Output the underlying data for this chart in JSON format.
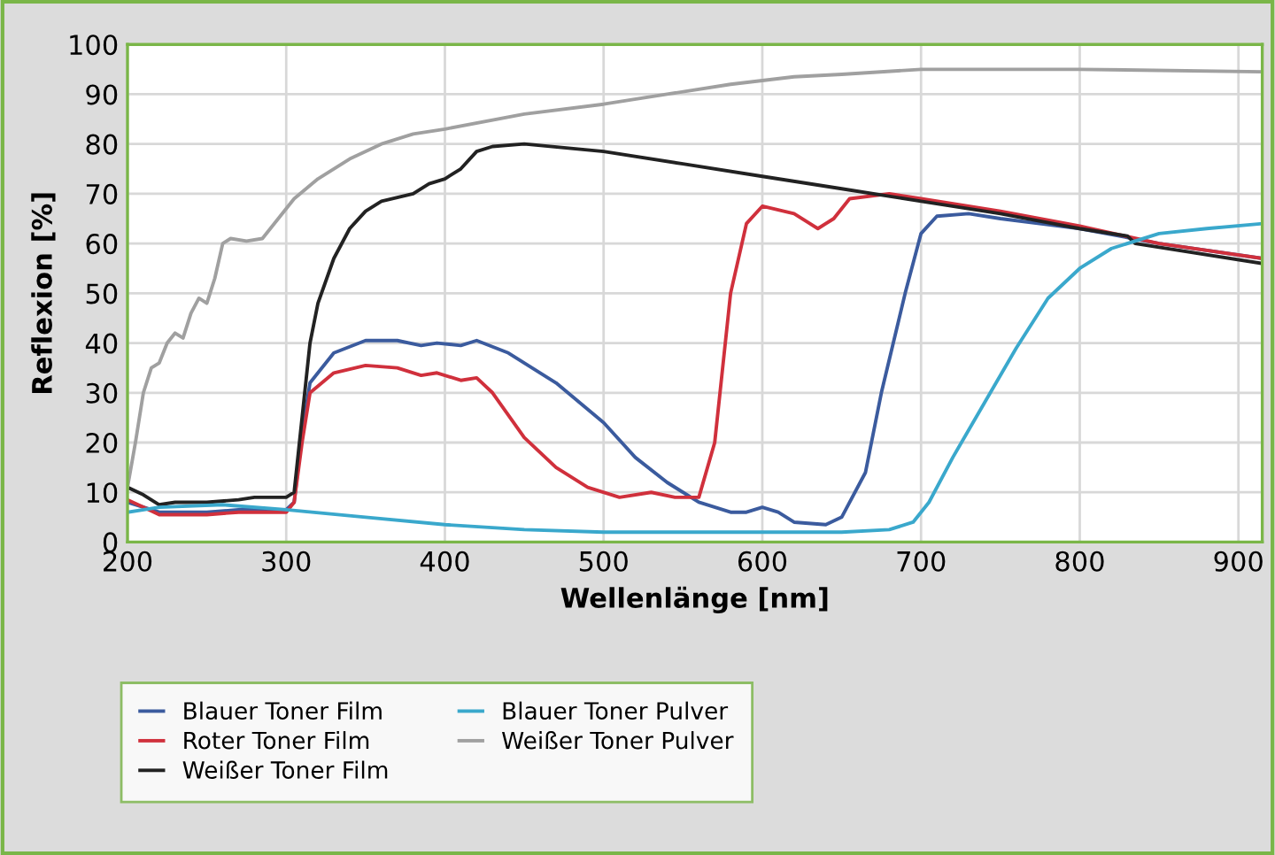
{
  "chart_data": {
    "type": "line",
    "xlabel": "Wellenlänge [nm]",
    "ylabel": "Reflexion [%]",
    "xlim": [
      200,
      915
    ],
    "ylim": [
      0,
      100
    ],
    "xticks": [
      200,
      300,
      400,
      500,
      600,
      700,
      800,
      900
    ],
    "yticks": [
      0,
      10,
      20,
      30,
      40,
      50,
      60,
      70,
      80,
      90,
      100
    ],
    "grid": true,
    "legend": "bottom",
    "marker": "none",
    "line_style": "solid",
    "series": [
      {
        "name": "Blauer Toner Film",
        "color": "#3b5b9e",
        "x": [
          200,
          220,
          250,
          270,
          300,
          305,
          310,
          315,
          330,
          350,
          370,
          385,
          395,
          410,
          420,
          440,
          470,
          500,
          520,
          540,
          560,
          580,
          590,
          600,
          610,
          620,
          640,
          650,
          665,
          675,
          690,
          700,
          710,
          730,
          750,
          800,
          850,
          915
        ],
        "values": [
          8,
          6,
          6,
          6.5,
          6.5,
          8,
          22,
          32,
          38,
          40.5,
          40.5,
          39.5,
          40,
          39.5,
          40.5,
          38,
          32,
          24,
          17,
          12,
          8,
          6,
          6,
          7,
          6,
          4,
          3.5,
          5,
          14,
          30,
          50,
          62,
          65.5,
          66,
          65,
          63,
          60,
          57
        ]
      },
      {
        "name": "Roter Toner Film",
        "color": "#d0303c",
        "x": [
          200,
          210,
          220,
          250,
          270,
          300,
          305,
          310,
          315,
          330,
          350,
          370,
          385,
          395,
          410,
          420,
          430,
          450,
          470,
          490,
          510,
          530,
          545,
          560,
          570,
          580,
          590,
          600,
          620,
          635,
          645,
          655,
          680,
          700,
          750,
          800,
          850,
          915
        ],
        "values": [
          8.5,
          7,
          5.5,
          5.5,
          6,
          6,
          8,
          20,
          30,
          34,
          35.5,
          35,
          33.5,
          34,
          32.5,
          33,
          30,
          21,
          15,
          11,
          9,
          10,
          9,
          9,
          20,
          50,
          64,
          67.5,
          66,
          63,
          65,
          69,
          70,
          69,
          66.5,
          63.5,
          60,
          57
        ]
      },
      {
        "name": "Weißer Toner Film",
        "color": "#222222",
        "x": [
          200,
          210,
          220,
          230,
          250,
          270,
          280,
          300,
          305,
          310,
          315,
          320,
          330,
          340,
          350,
          360,
          380,
          390,
          400,
          410,
          420,
          430,
          450,
          500,
          550,
          600,
          650,
          700,
          750,
          800,
          830,
          835,
          915
        ],
        "values": [
          11,
          9.5,
          7.5,
          8,
          8,
          8.5,
          9,
          9,
          10,
          25,
          40,
          48,
          57,
          63,
          66.5,
          68.5,
          70,
          72,
          73,
          75,
          78.5,
          79.5,
          80,
          78.5,
          76,
          73.5,
          71,
          68.5,
          66,
          63,
          61.5,
          60,
          56
        ]
      },
      {
        "name": "Blauer Toner Pulver",
        "color": "#3aa8cc",
        "x": [
          200,
          220,
          260,
          300,
          350,
          400,
          450,
          500,
          600,
          650,
          680,
          695,
          705,
          720,
          740,
          760,
          780,
          800,
          820,
          850,
          880,
          915
        ],
        "values": [
          6,
          7,
          7.5,
          6.5,
          5,
          3.5,
          2.5,
          2,
          2,
          2,
          2.5,
          4,
          8,
          17,
          28,
          39,
          49,
          55,
          59,
          62,
          63,
          64
        ]
      },
      {
        "name": "Weißer Toner Pulver",
        "color": "#a0a0a0",
        "x": [
          200,
          205,
          210,
          215,
          220,
          225,
          230,
          235,
          240,
          245,
          250,
          255,
          260,
          265,
          275,
          285,
          295,
          305,
          320,
          340,
          360,
          380,
          400,
          450,
          500,
          540,
          580,
          620,
          650,
          700,
          800,
          915
        ],
        "values": [
          11,
          20,
          30,
          35,
          36,
          40,
          42,
          41,
          46,
          49,
          48,
          53,
          60,
          61,
          60.5,
          61,
          65,
          69,
          73,
          77,
          80,
          82,
          83,
          86,
          88,
          90,
          92,
          93.5,
          94,
          95,
          95,
          94.5
        ]
      }
    ]
  }
}
